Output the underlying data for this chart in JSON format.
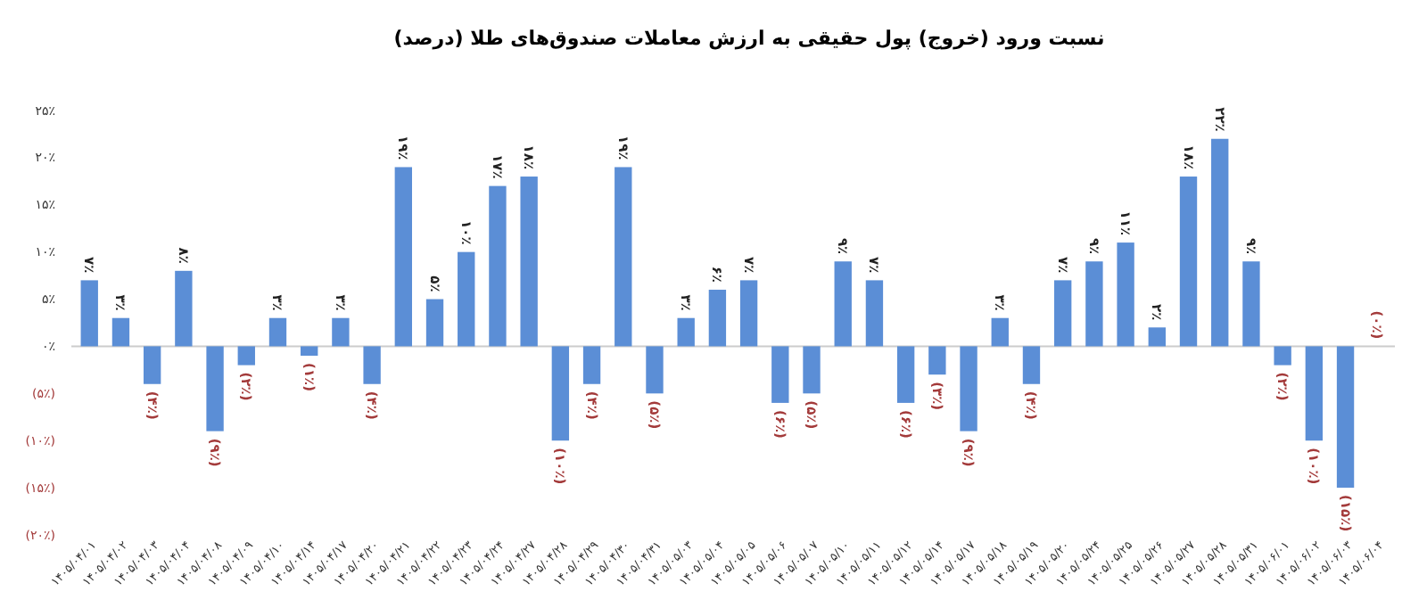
{
  "chart_data": {
    "type": "bar",
    "title": "نسبت ورود (خروج) پول حقیقی به ارزش معاملات صندوق‌های طلا (درصد)",
    "categories": [
      "۱۴۰۵/۰۴/۰۱",
      "۱۴۰۵/۰۴/۰۲",
      "۱۴۰۵/۰۴/۰۳",
      "۱۴۰۵/۰۴/۰۴",
      "۱۴۰۵/۰۴/۰۸",
      "۱۴۰۵/۰۴/۰۹",
      "۱۴۰۵/۰۴/۱۰",
      "۱۴۰۵/۰۴/۱۴",
      "۱۴۰۵/۰۴/۱۷",
      "۱۴۰۵/۰۴/۲۰",
      "۱۴۰۵/۰۴/۲۱",
      "۱۴۰۵/۰۴/۲۲",
      "۱۴۰۵/۰۴/۲۳",
      "۱۴۰۵/۰۴/۲۴",
      "۱۴۰۵/۰۴/۲۷",
      "۱۴۰۵/۰۴/۲۸",
      "۱۴۰۵/۰۴/۲۹",
      "۱۴۰۵/۰۴/۳۰",
      "۱۴۰۵/۰۴/۳۱",
      "۱۴۰۵/۰۵/۰۳",
      "۱۴۰۵/۰۵/۰۴",
      "۱۴۰۵/۰۵/۰۵",
      "۱۴۰۵/۰۵/۰۶",
      "۱۴۰۵/۰۵/۰۷",
      "۱۴۰۵/۰۵/۱۰",
      "۱۴۰۵/۰۵/۱۱",
      "۱۴۰۵/۰۵/۱۲",
      "۱۴۰۵/۰۵/۱۴",
      "۱۴۰۵/۰۵/۱۷",
      "۱۴۰۵/۰۵/۱۸",
      "۱۴۰۵/۰۵/۱۹",
      "۱۴۰۵/۰۵/۲۰",
      "۱۴۰۵/۰۵/۲۴",
      "۱۴۰۵/۰۵/۲۵",
      "۱۴۰۵/۰۵/۲۶",
      "۱۴۰۵/۰۵/۲۷",
      "۱۴۰۵/۰۵/۲۸",
      "۱۴۰۵/۰۵/۳۱",
      "۱۴۰۵/۰۶/۰۱",
      "۱۴۰۵/۰۶/۰۲",
      "۱۴۰۵/۰۶/۰۳",
      "۱۴۰۵/۰۶/۰۴"
    ],
    "series": [
      {
        "color": "#5b8ed6",
        "values": [
          7,
          3,
          -4,
          8,
          -9,
          -2,
          3,
          -1,
          3,
          -4,
          19,
          5,
          10,
          17,
          18,
          -10,
          -4,
          19,
          -5,
          3,
          6,
          7,
          -6,
          -5,
          9,
          7,
          -6,
          -3,
          -9,
          3,
          -4,
          7,
          9,
          11,
          2,
          18,
          22,
          9,
          -2,
          -10,
          -15,
          0
        ],
        "value_labels": [
          "۷٪",
          "۳٪",
          "(۴٪)",
          "۸٪",
          "(۹٪)",
          "(۲٪)",
          "۳٪",
          "(۱٪)",
          "۳٪",
          "(۴٪)",
          "۱۹٪",
          "۵٪",
          "۱۰٪",
          "۱۷٪",
          "۱۸٪",
          "(۱۰٪)",
          "(۴٪)",
          "۱۹٪",
          "(۵٪)",
          "۳٪",
          "۶٪",
          "۷٪",
          "(۶٪)",
          "(۵٪)",
          "۹٪",
          "۷٪",
          "(۶٪)",
          "(۳٪)",
          "(۹٪)",
          "۳٪",
          "(۴٪)",
          "۷٪",
          "۹٪",
          "۱۱٪",
          "۲٪",
          "۱۸٪",
          "۲۲٪",
          "۹٪",
          "(۲٪)",
          "(۱۰٪)",
          "(۱۵٪)",
          "(۰٪)"
        ]
      }
    ],
    "ylim": [
      -20,
      25
    ],
    "yticks": [
      {
        "value": 25,
        "label": "۲۵٪"
      },
      {
        "value": 20,
        "label": "۲۰٪"
      },
      {
        "value": 15,
        "label": "۱۵٪"
      },
      {
        "value": 10,
        "label": "۱۰٪"
      },
      {
        "value": 5,
        "label": "۵٪"
      },
      {
        "value": 0,
        "label": "۰٪"
      },
      {
        "value": -5,
        "label": "(۵٪)"
      },
      {
        "value": -10,
        "label": "(۱۰٪)"
      },
      {
        "value": -15,
        "label": "(۱۵٪)"
      },
      {
        "value": -20,
        "label": "(۲۰٪)"
      }
    ],
    "ref_lines": [
      {
        "axis": "y",
        "value": 0,
        "color": "#cccccc"
      }
    ],
    "grid": false
  }
}
